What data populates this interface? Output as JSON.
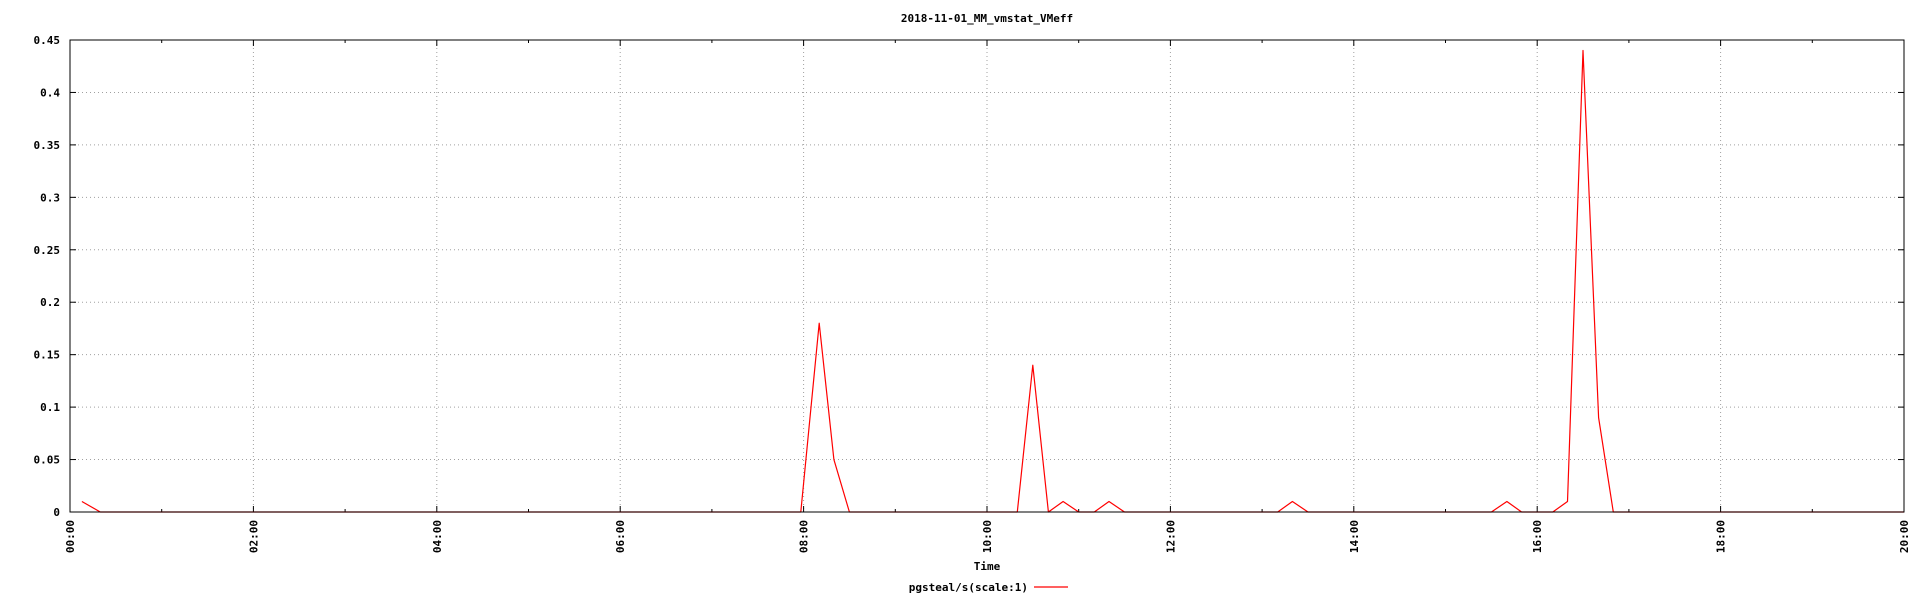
{
  "chart_data": {
    "type": "line",
    "title": "2018-11-01_MM_vmstat_VMeff",
    "xlabel": "Time",
    "ylabel": "",
    "x_tick_labels": [
      "00:00",
      "02:00",
      "04:00",
      "06:00",
      "08:00",
      "10:00",
      "12:00",
      "14:00",
      "16:00",
      "18:00",
      "20:00"
    ],
    "x_unit": "hours",
    "xlim": [
      0,
      20
    ],
    "ylim": [
      0,
      0.45
    ],
    "y_ticks": [
      0,
      0.05,
      0.1,
      0.15,
      0.2,
      0.25,
      0.3,
      0.35,
      0.4,
      0.45
    ],
    "y_tick_labels": [
      "0",
      "0.05",
      "0.1",
      "0.15",
      "0.2",
      "0.25",
      "0.3",
      "0.35",
      "0.4",
      "0.45"
    ],
    "grid": true,
    "legend": "bottom-center",
    "series": [
      {
        "name": "pgsteal/s(scale:1)",
        "color": "#ff0000",
        "x": [
          0.13,
          0.33,
          7.97,
          8.17,
          8.33,
          8.5,
          10.33,
          10.5,
          10.67,
          10.83,
          11.0,
          11.17,
          11.33,
          11.5,
          13.17,
          13.33,
          13.5,
          15.5,
          15.67,
          15.83,
          16.17,
          16.33,
          16.5,
          16.67,
          16.83,
          20.0
        ],
        "y": [
          0.01,
          0,
          0,
          0.18,
          0.05,
          0,
          0,
          0.14,
          0,
          0.01,
          0,
          0,
          0.01,
          0,
          0,
          0.01,
          0,
          0,
          0.01,
          0,
          0,
          0.01,
          0.44,
          0.09,
          0,
          0
        ]
      }
    ]
  }
}
